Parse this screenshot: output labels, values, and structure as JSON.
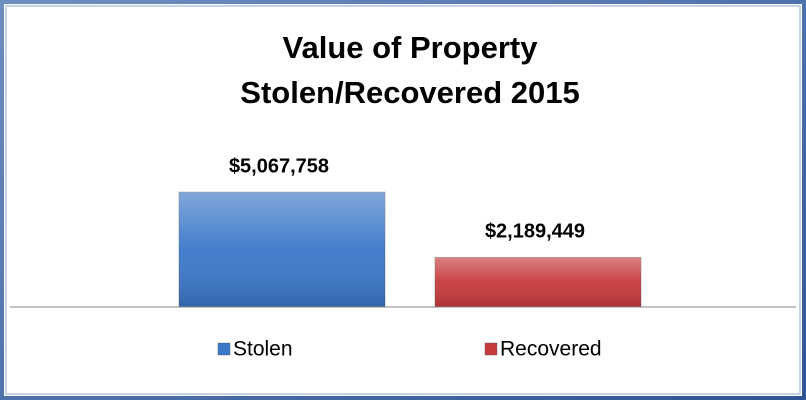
{
  "chart_data": {
    "type": "bar",
    "title": [
      "Value of Property",
      "Stolen/Recovered 2015"
    ],
    "categories": [
      null
    ],
    "series": [
      {
        "name": "Stolen",
        "color": "#3b78c9",
        "values": [
          5067758
        ],
        "value_labels": [
          "$5,067,758"
        ]
      },
      {
        "name": "Recovered",
        "color": "#c63a3c",
        "values": [
          2189449
        ],
        "value_labels": [
          "$2,189,449"
        ]
      }
    ],
    "ylim": [
      0,
      6000000
    ],
    "legend": "bottom"
  }
}
